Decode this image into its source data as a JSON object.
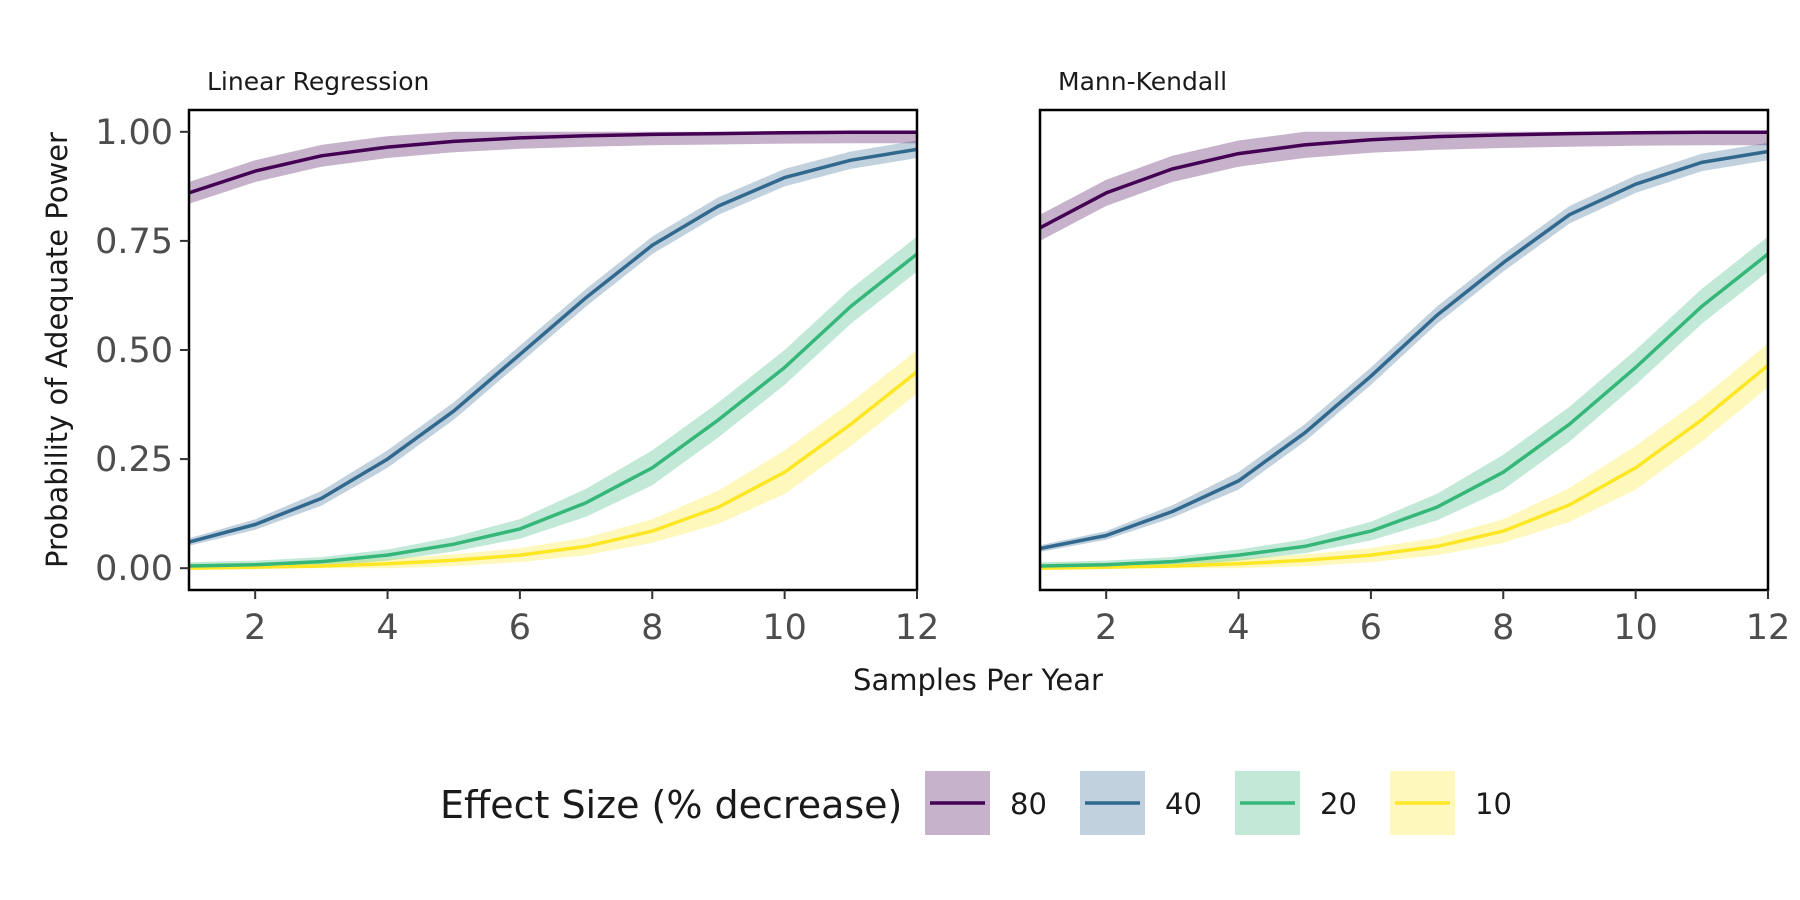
{
  "chart_data": {
    "type": "line",
    "ylabel": "Probability of Adequate Power",
    "xlabel": "Samples Per Year",
    "xlim": [
      1,
      12
    ],
    "ylim": [
      -0.05,
      1.05
    ],
    "xticks": [
      2,
      4,
      6,
      8,
      10,
      12
    ],
    "yticks": [
      0.0,
      0.25,
      0.5,
      0.75,
      1.0
    ],
    "ytick_labels": [
      "0.00",
      "0.25",
      "0.50",
      "0.75",
      "1.00"
    ],
    "grid": false,
    "legend": {
      "title": "Effect Size (% decrease)",
      "position": "bottom",
      "entries": [
        "80",
        "40",
        "20",
        "10"
      ]
    },
    "colors": {
      "80": "#440154",
      "40": "#31688e",
      "20": "#35b779",
      "10": "#fde725"
    },
    "x": [
      1,
      2,
      3,
      4,
      5,
      6,
      7,
      8,
      9,
      10,
      11,
      12
    ],
    "panels": [
      {
        "title": "Linear Regression",
        "series": [
          {
            "name": "80",
            "values": [
              0.86,
              0.91,
              0.945,
              0.965,
              0.978,
              0.986,
              0.991,
              0.994,
              0.996,
              0.998,
              0.999,
              0.999
            ],
            "band": 0.025
          },
          {
            "name": "40",
            "values": [
              0.06,
              0.1,
              0.16,
              0.25,
              0.36,
              0.49,
              0.62,
              0.74,
              0.83,
              0.895,
              0.935,
              0.96
            ],
            "band": 0.02
          },
          {
            "name": "20",
            "values": [
              0.005,
              0.008,
              0.015,
              0.03,
              0.055,
              0.09,
              0.15,
              0.23,
              0.34,
              0.46,
              0.6,
              0.72
            ],
            "band": 0.04
          },
          {
            "name": "10",
            "values": [
              0.0,
              0.002,
              0.005,
              0.01,
              0.018,
              0.03,
              0.05,
              0.085,
              0.14,
              0.22,
              0.33,
              0.45
            ],
            "band": 0.05
          }
        ]
      },
      {
        "title": "Mann-Kendall",
        "series": [
          {
            "name": "80",
            "values": [
              0.78,
              0.86,
              0.915,
              0.95,
              0.97,
              0.982,
              0.989,
              0.993,
              0.996,
              0.998,
              0.999,
              0.999
            ],
            "band": 0.03
          },
          {
            "name": "40",
            "values": [
              0.045,
              0.075,
              0.13,
              0.2,
              0.31,
              0.44,
              0.58,
              0.7,
              0.81,
              0.88,
              0.93,
              0.955
            ],
            "band": 0.02
          },
          {
            "name": "20",
            "values": [
              0.005,
              0.008,
              0.015,
              0.03,
              0.05,
              0.085,
              0.14,
              0.22,
              0.33,
              0.46,
              0.6,
              0.72
            ],
            "band": 0.04
          },
          {
            "name": "10",
            "values": [
              0.0,
              0.002,
              0.005,
              0.01,
              0.018,
              0.03,
              0.05,
              0.085,
              0.145,
              0.23,
              0.34,
              0.465
            ],
            "band": 0.05
          }
        ]
      }
    ]
  }
}
